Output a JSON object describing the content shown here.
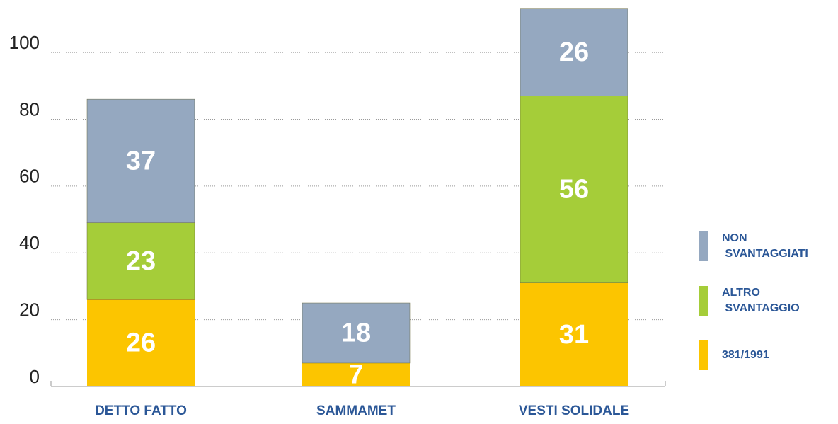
{
  "chart_data": {
    "type": "stacked_bar",
    "categories": [
      "DETTO FATTO",
      "SAMMAMET",
      "VESTI SOLIDALE"
    ],
    "series": [
      {
        "name": "381/1991",
        "color": "#fcc500",
        "values": [
          26,
          7,
          31
        ]
      },
      {
        "name": "ALTRO SVANTAGGIO",
        "color": "#a5cd39",
        "values": [
          23,
          0,
          56
        ]
      },
      {
        "name": "NON SVANTAGGIATI",
        "color": "#95a8c0",
        "values": [
          37,
          18,
          26
        ]
      }
    ],
    "ylim": [
      0,
      114
    ],
    "yticks": [
      0,
      20,
      40,
      60,
      80,
      100
    ],
    "grid": true,
    "legend": "right"
  }
}
